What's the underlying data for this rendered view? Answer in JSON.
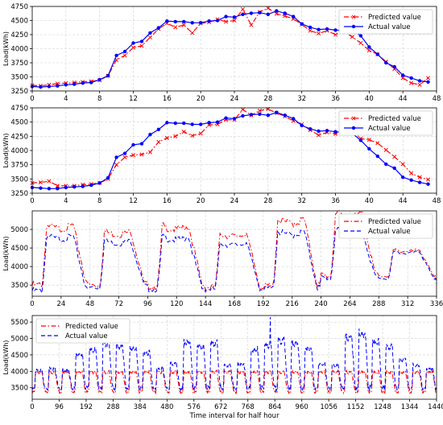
{
  "chart_data": [
    {
      "type": "line",
      "xlabel": "",
      "ylabel": "Load(kWh)",
      "xlim": [
        0,
        48
      ],
      "ylim": [
        3250,
        4750
      ],
      "xticks": [
        0,
        4,
        8,
        12,
        16,
        20,
        24,
        28,
        32,
        36,
        40,
        44,
        48
      ],
      "yticks": [
        3250,
        3500,
        3750,
        4000,
        4250,
        4500,
        4750
      ],
      "grid": true,
      "legend_position": "top-right",
      "x": [
        0,
        1,
        2,
        3,
        4,
        5,
        6,
        7,
        8,
        9,
        10,
        11,
        12,
        13,
        14,
        15,
        16,
        17,
        18,
        19,
        20,
        21,
        22,
        23,
        24,
        25,
        26,
        27,
        28,
        29,
        30,
        31,
        32,
        33,
        34,
        35,
        36,
        37,
        38,
        39,
        40,
        41,
        42,
        43,
        44,
        45,
        46,
        47
      ],
      "series": [
        {
          "name": "Predicted value",
          "color": "#ff0000",
          "style": "dashdot",
          "marker": "x",
          "values": [
            3350,
            3340,
            3360,
            3380,
            3390,
            3400,
            3410,
            3420,
            3440,
            3520,
            3800,
            3880,
            4020,
            4050,
            4200,
            4350,
            4450,
            4380,
            4420,
            4280,
            4450,
            4470,
            4520,
            4480,
            4500,
            4700,
            4420,
            4650,
            4720,
            4620,
            4580,
            4530,
            4430,
            4320,
            4270,
            4320,
            4250,
            4300,
            4210,
            4100,
            3970,
            3900,
            3770,
            3640,
            3480,
            3390,
            3360,
            3480
          ]
        },
        {
          "name": "Actual value",
          "color": "#0000ff",
          "style": "solid",
          "marker": "o",
          "values": [
            3330,
            3320,
            3330,
            3340,
            3360,
            3370,
            3390,
            3400,
            3450,
            3520,
            3880,
            3950,
            4100,
            4130,
            4280,
            4370,
            4490,
            4480,
            4480,
            4460,
            4460,
            4490,
            4500,
            4570,
            4560,
            4610,
            4630,
            4640,
            4610,
            4670,
            4630,
            4570,
            4440,
            4380,
            4340,
            4350,
            4330,
            4320,
            4330,
            4230,
            4030,
            3900,
            3750,
            3680,
            3530,
            3480,
            3430,
            3410
          ]
        }
      ]
    },
    {
      "type": "line",
      "xlabel": "",
      "ylabel": "Load(kWh)",
      "xlim": [
        0,
        48
      ],
      "ylim": [
        3250,
        4750
      ],
      "xticks": [
        0,
        4,
        8,
        12,
        16,
        20,
        24,
        28,
        32,
        36,
        40,
        44,
        48
      ],
      "yticks": [
        3250,
        3500,
        3750,
        4000,
        4250,
        4500,
        4750
      ],
      "grid": true,
      "legend_position": "top-right",
      "x": [
        0,
        1,
        2,
        3,
        4,
        5,
        6,
        7,
        8,
        9,
        10,
        11,
        12,
        13,
        14,
        15,
        16,
        17,
        18,
        19,
        20,
        21,
        22,
        23,
        24,
        25,
        26,
        27,
        28,
        29,
        30,
        31,
        32,
        33,
        34,
        35,
        36,
        37,
        38,
        39,
        40,
        41,
        42,
        43,
        44,
        45,
        46,
        47
      ],
      "series": [
        {
          "name": "Predicted value",
          "color": "#ff0000",
          "style": "dashdot",
          "marker": "x",
          "values": [
            3430,
            3440,
            3460,
            3380,
            3380,
            3380,
            3400,
            3410,
            3430,
            3500,
            3750,
            3880,
            3920,
            3930,
            3970,
            4150,
            4220,
            4250,
            4330,
            4260,
            4300,
            4450,
            4460,
            4540,
            4540,
            4720,
            4620,
            4700,
            4730,
            4660,
            4600,
            4520,
            4460,
            4360,
            4270,
            4320,
            4290,
            4330,
            4340,
            4210,
            4190,
            4130,
            4010,
            3890,
            3760,
            3600,
            3530,
            3490
          ]
        },
        {
          "name": "Actual value",
          "color": "#0000ff",
          "style": "solid",
          "marker": "o",
          "values": [
            3350,
            3340,
            3330,
            3330,
            3350,
            3360,
            3370,
            3390,
            3430,
            3520,
            3880,
            3950,
            4100,
            4120,
            4280,
            4370,
            4490,
            4480,
            4480,
            4460,
            4460,
            4490,
            4500,
            4570,
            4560,
            4610,
            4630,
            4640,
            4620,
            4670,
            4620,
            4560,
            4440,
            4380,
            4340,
            4350,
            4330,
            4320,
            4300,
            4180,
            4030,
            3900,
            3760,
            3690,
            3530,
            3480,
            3440,
            3410
          ]
        }
      ]
    },
    {
      "type": "line",
      "xlabel": "",
      "ylabel": "Load(kWh)",
      "xlim": [
        0,
        336
      ],
      "ylim": [
        3200,
        5500
      ],
      "xticks": [
        0,
        24,
        48,
        72,
        96,
        120,
        144,
        168,
        192,
        216,
        240,
        264,
        288,
        312,
        336
      ],
      "yticks": [
        3500,
        4000,
        4500,
        5000
      ],
      "grid": true,
      "legend_position": "top-right",
      "period": 48,
      "series": [
        {
          "name": "Predicted value",
          "color": "#ff0000",
          "style": "dashdot",
          "peaks": [
            5120,
            4950,
            5100,
            4900,
            5280,
            5450,
            4450,
            4650,
            4200,
            4600
          ],
          "troughs": [
            3450,
            3450,
            3430,
            3400,
            3400,
            3700,
            3720,
            3620,
            3600,
            3900
          ]
        },
        {
          "name": "Actual value",
          "color": "#0000ff",
          "style": "dashed",
          "peaks": [
            4830,
            4700,
            4800,
            4650,
            4950,
            5000,
            4400,
            4450,
            4280,
            4420
          ],
          "troughs": [
            3300,
            3400,
            3350,
            3350,
            3350,
            3650,
            3650,
            3550,
            3550,
            3700
          ]
        }
      ]
    },
    {
      "type": "line",
      "xlabel": "Time interval for half hour",
      "ylabel": "Load(kWh)",
      "xlim": [
        0,
        1440
      ],
      "ylim": [
        3150,
        5700
      ],
      "xticks": [
        0,
        96,
        192,
        288,
        384,
        480,
        576,
        672,
        768,
        864,
        960,
        1056,
        1152,
        1248,
        1344,
        1440
      ],
      "yticks": [
        3500,
        4000,
        4500,
        5000,
        5500
      ],
      "grid": true,
      "legend_position": "top-left",
      "period": 48,
      "series": [
        {
          "name": "Predicted value",
          "color": "#ff0000",
          "style": "dashdot",
          "peak": 4000,
          "trough": 3350
        },
        {
          "name": "Actual value",
          "color": "#0000ff",
          "style": "dashed",
          "peaks": [
            4050,
            4100,
            4050,
            4550,
            4700,
            4900,
            4800,
            4750,
            4600,
            4100,
            4250,
            4950,
            4800,
            4900,
            4200,
            4250,
            4700,
            4850,
            5000,
            4900,
            4750,
            4250,
            4200,
            5100,
            5200,
            4950,
            4800,
            4400,
            4200,
            4100
          ],
          "trough": 3450,
          "spike_x": 848,
          "spike_value": 5650
        }
      ]
    }
  ]
}
